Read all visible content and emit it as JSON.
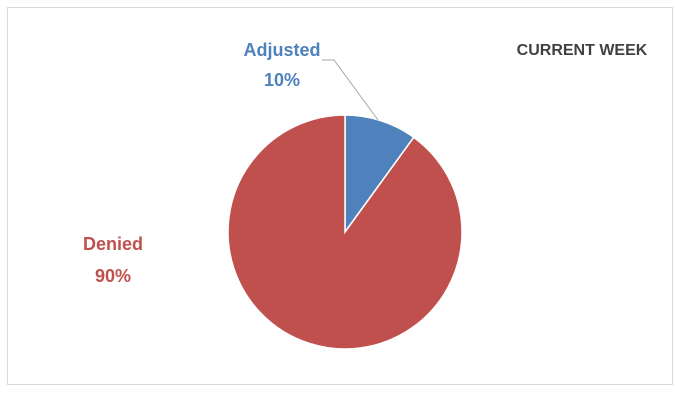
{
  "chart_data": {
    "type": "pie",
    "title": "CURRENT WEEK",
    "slices": [
      {
        "label": "Adjusted",
        "value": 10,
        "value_label": "10%",
        "color": "#4f81bd"
      },
      {
        "label": "Denied",
        "value": 90,
        "value_label": "90%",
        "color": "#c0504d"
      }
    ],
    "start_angle": "12 o'clock",
    "direction": "clockwise",
    "legend": "none",
    "data_labels": "outside"
  }
}
